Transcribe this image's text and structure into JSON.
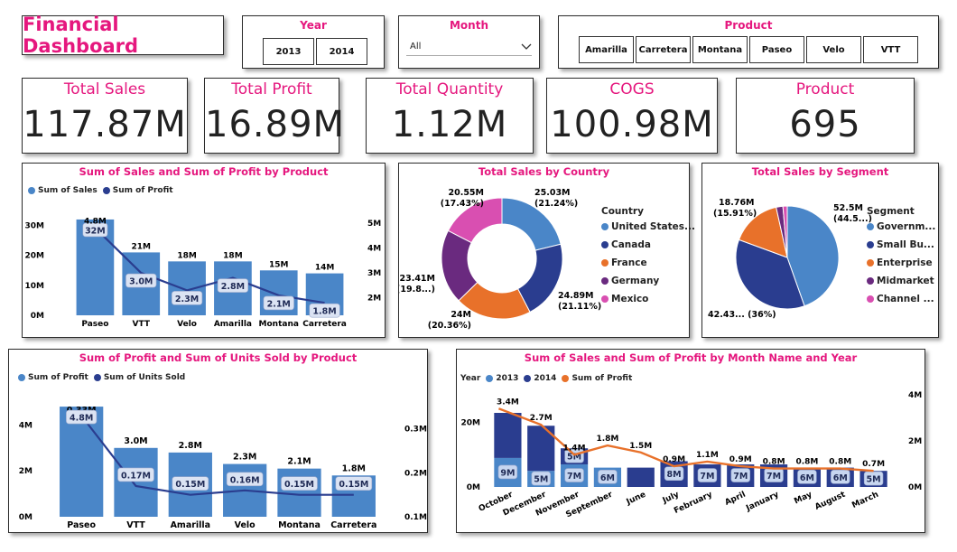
{
  "app": {
    "title": "Financial Dashboard"
  },
  "colors": {
    "accent": "#e5177e",
    "blue": "#4a86c8",
    "navy": "#2a3d8f",
    "orange": "#e8712a",
    "purple": "#6a2a7f",
    "pink": "#d94fb1"
  },
  "slicers": {
    "year": {
      "label": "Year",
      "options": [
        "2013",
        "2014"
      ]
    },
    "month": {
      "label": "Month",
      "selected": "All"
    },
    "product": {
      "label": "Product",
      "options": [
        "Amarilla",
        "Carretera",
        "Montana",
        "Paseo",
        "Velo",
        "VTT"
      ]
    }
  },
  "kpis": [
    {
      "label": "Total Sales",
      "value": "117.87M"
    },
    {
      "label": "Total Profit",
      "value": "16.89M"
    },
    {
      "label": "Total Quantity",
      "value": "1.12M"
    },
    {
      "label": "COGS",
      "value": "100.98M"
    },
    {
      "label": "Product",
      "value": "695"
    }
  ],
  "charts": {
    "sales_profit": {
      "title": "Sum of Sales and Sum of Profit by Product",
      "legend": [
        "Sum of  Sales",
        "Sum of  Profit"
      ],
      "left_ticks": [
        "0M",
        "10M",
        "20M",
        "30M"
      ],
      "right_ticks": [
        "2M",
        "3M",
        "4M",
        "5M"
      ]
    },
    "country": {
      "title": "Total Sales by Country",
      "legend_title": "Country",
      "legend": [
        "United States...",
        "Canada",
        "France",
        "Germany",
        "Mexico"
      ],
      "labels": [
        "25.03M",
        "(21.24%)",
        "24.89M",
        "(21.11%)",
        "24M",
        "(20.36%)",
        "23.41M",
        "(19.8...)",
        "20.55M",
        "(17.43%)"
      ]
    },
    "segment": {
      "title": "Total Sales by Segment",
      "legend_title": "Segment",
      "legend": [
        "Governm...",
        "Small Bu...",
        "Enterprise",
        "Midmarket",
        "Channel ..."
      ],
      "labels": [
        "52.5M",
        "(44.5...)",
        "42.43... (36%)",
        "18.76M",
        "(15.91%)"
      ]
    },
    "profit_units": {
      "title": "Sum of Profit and Sum of Units Sold by Product",
      "legend": [
        "Sum of  Profit",
        "Sum of  Units Sold"
      ],
      "left_ticks": [
        "0M",
        "2M",
        "4M"
      ],
      "right_ticks": [
        "0.1M",
        "0.2M",
        "0.3M"
      ]
    },
    "monthly": {
      "title": "Sum of Sales and Sum of Profit by Month Name and Year",
      "legend": [
        "Year",
        "2013",
        "2014",
        "Sum of  Profit"
      ],
      "left_ticks": [
        "0M",
        "20M"
      ],
      "right_ticks": [
        "0M",
        "2M",
        "4M"
      ]
    }
  },
  "chart_data": [
    {
      "type": "bar",
      "title": "Sum of Sales and Sum of Profit by Product",
      "categories": [
        "Paseo",
        "VTT",
        "Velo",
        "Amarilla",
        "Montana",
        "Carretera"
      ],
      "series": [
        {
          "name": "Sum of  Sales",
          "values": [
            32,
            21,
            18,
            18,
            15,
            14
          ],
          "labels": [
            "32M",
            "21M",
            "18M",
            "18M",
            "15M",
            "14M"
          ]
        },
        {
          "name": "Sum of  Profit",
          "values": [
            4.8,
            3.0,
            2.3,
            2.8,
            2.1,
            1.8
          ],
          "labels": [
            "4.8M",
            "3.0M",
            "2.3M",
            "2.8M",
            "2.1M",
            "1.8M"
          ]
        }
      ],
      "ylim": [
        0,
        35
      ],
      "y2lim": [
        1.3,
        5.5
      ]
    },
    {
      "type": "pie",
      "title": "Total Sales by Country",
      "categories": [
        "United States...",
        "Canada",
        "France",
        "Germany",
        "Mexico"
      ],
      "values": [
        25.03,
        24.89,
        24.0,
        23.41,
        20.55
      ]
    },
    {
      "type": "pie",
      "title": "Total Sales by Segment",
      "categories": [
        "Governm...",
        "Small Bu...",
        "Enterprise",
        "Midmarket",
        "Channel ..."
      ],
      "values": [
        52.5,
        42.43,
        18.76,
        2.5,
        1.6
      ]
    },
    {
      "type": "bar",
      "title": "Sum of Profit and Sum of Units Sold by Product",
      "categories": [
        "Paseo",
        "VTT",
        "Amarilla",
        "Velo",
        "Montana",
        "Carretera"
      ],
      "series": [
        {
          "name": "Sum of  Profit",
          "values": [
            4.8,
            3.0,
            2.8,
            2.3,
            2.1,
            1.8
          ],
          "labels": [
            "4.8M",
            "3.0M",
            "2.8M",
            "2.3M",
            "2.1M",
            "1.8M"
          ]
        },
        {
          "name": "Sum of  Units Sold",
          "values": [
            0.33,
            0.17,
            0.15,
            0.16,
            0.15,
            0.15
          ],
          "labels": [
            "0.33M",
            "0.17M",
            "0.15M",
            "0.16M",
            "0.15M",
            "0.15M"
          ]
        }
      ],
      "ylim": [
        0,
        5
      ],
      "y2lim": [
        0.1,
        0.35
      ]
    },
    {
      "type": "bar",
      "title": "Sum of Sales and Sum of Profit by Month Name and Year",
      "categories": [
        "October",
        "December",
        "November",
        "September",
        "June",
        "July",
        "February",
        "April",
        "January",
        "May",
        "August",
        "March"
      ],
      "series": [
        {
          "name": "2013",
          "values": [
            9,
            5,
            7,
            6,
            0,
            0,
            0,
            0,
            0,
            0,
            0,
            0
          ],
          "labels": [
            "9M",
            "5M",
            "7M",
            "6M",
            "",
            "",
            "",
            "",
            "",
            "",
            "",
            ""
          ]
        },
        {
          "name": "2014",
          "values": [
            14,
            14,
            5,
            0,
            6,
            8,
            7,
            7,
            7,
            6,
            6,
            5
          ],
          "labels": [
            "",
            "",
            "5M",
            "",
            "",
            "8M",
            "7M",
            "7M",
            "7M",
            "6M",
            "6M",
            "5M"
          ]
        },
        {
          "name": "Sum of  Profit",
          "values": [
            3.4,
            2.7,
            1.4,
            1.8,
            1.5,
            0.9,
            1.1,
            0.9,
            0.8,
            0.8,
            0.8,
            0.7
          ],
          "labels": [
            "3.4M",
            "2.7M",
            "1.4M",
            "1.8M",
            "1.5M",
            "0.9M",
            "1.1M",
            "0.9M",
            "0.8M",
            "0.8M",
            "0.8M",
            "0.7M"
          ]
        }
      ],
      "ylim": [
        0,
        25
      ],
      "y2lim": [
        0,
        4
      ]
    }
  ]
}
